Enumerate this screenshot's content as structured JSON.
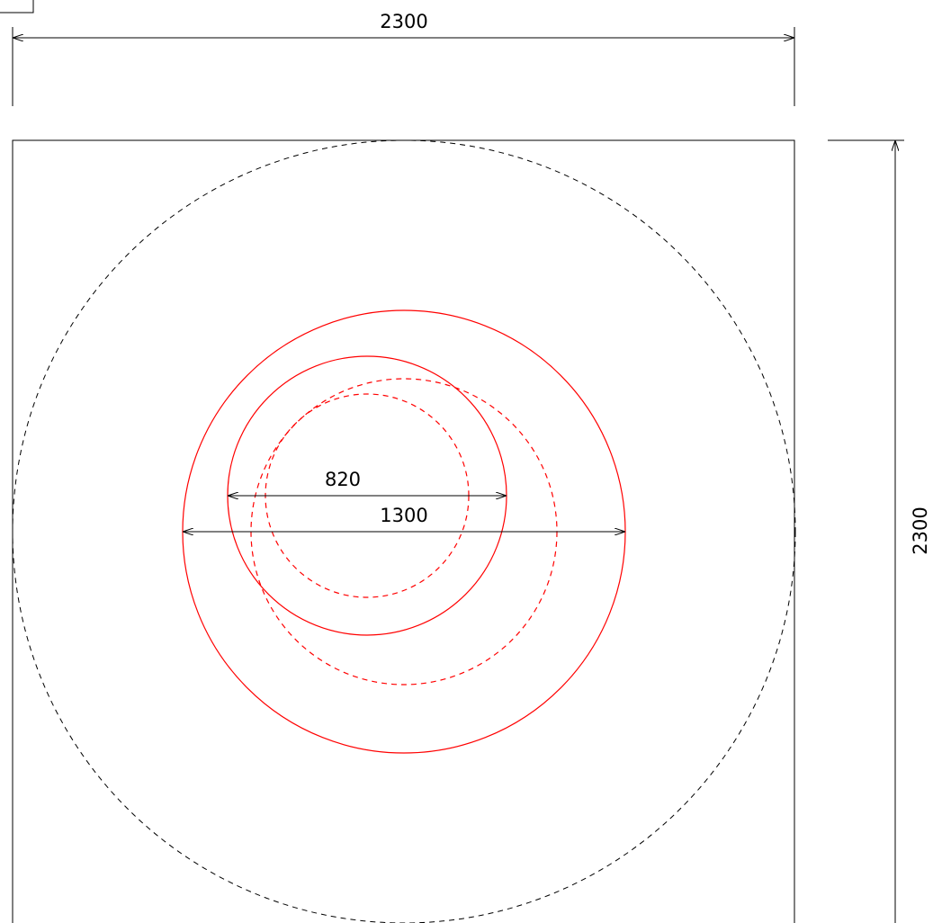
{
  "drawing": {
    "dimensions": {
      "overall_width": "2300",
      "overall_height": "2300",
      "inner_diameter": "820",
      "outer_diameter": "1300"
    },
    "colors": {
      "outline": "#000000",
      "circles": "#ff0000",
      "background": "#ffffff"
    }
  }
}
